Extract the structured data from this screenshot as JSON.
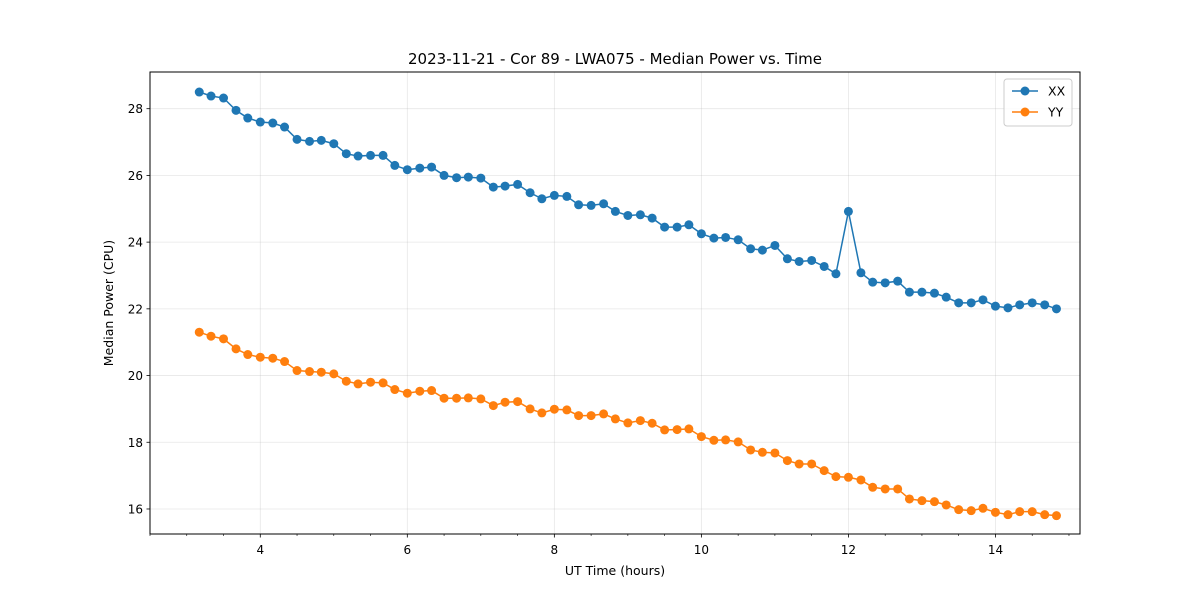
{
  "chart_data": {
    "type": "line",
    "title": "2023-11-21 - Cor 89 - LWA075 - Median Power vs. Time",
    "xlabel": "UT Time (hours)",
    "ylabel": "Median Power (CPU)",
    "xlim": [
      2.5,
      15.15
    ],
    "ylim": [
      15.25,
      29.1
    ],
    "xticks": [
      4,
      6,
      8,
      10,
      12,
      14
    ],
    "yticks": [
      16,
      18,
      20,
      22,
      24,
      26,
      28
    ],
    "grid": true,
    "legend_position": "top-right",
    "x": [
      3.17,
      3.33,
      3.5,
      3.67,
      3.83,
      4.0,
      4.17,
      4.33,
      4.5,
      4.67,
      4.83,
      5.0,
      5.17,
      5.33,
      5.5,
      5.67,
      5.83,
      6.0,
      6.17,
      6.33,
      6.5,
      6.67,
      6.83,
      7.0,
      7.17,
      7.33,
      7.5,
      7.67,
      7.83,
      8.0,
      8.17,
      8.33,
      8.5,
      8.67,
      8.83,
      9.0,
      9.17,
      9.33,
      9.5,
      9.67,
      9.83,
      10.0,
      10.17,
      10.33,
      10.5,
      10.67,
      10.83,
      11.0,
      11.17,
      11.33,
      11.5,
      11.67,
      11.83,
      12.0,
      12.17,
      12.33,
      12.5,
      12.67,
      12.83,
      13.0,
      13.17,
      13.33,
      13.5,
      13.67,
      13.83,
      14.0,
      14.17,
      14.33,
      14.5,
      14.67,
      14.83
    ],
    "series": [
      {
        "name": "XX",
        "color": "#1f77b4",
        "values": [
          28.5,
          28.38,
          28.32,
          27.95,
          27.72,
          27.6,
          27.57,
          27.45,
          27.08,
          27.02,
          27.05,
          26.95,
          26.65,
          26.58,
          26.6,
          26.6,
          26.3,
          26.17,
          26.22,
          26.25,
          26.0,
          25.93,
          25.95,
          25.92,
          25.65,
          25.68,
          25.73,
          25.48,
          25.3,
          25.4,
          25.37,
          25.12,
          25.1,
          25.15,
          24.92,
          24.8,
          24.82,
          24.72,
          24.45,
          24.45,
          24.52,
          24.25,
          24.12,
          24.14,
          24.07,
          23.8,
          23.76,
          23.9,
          23.5,
          23.42,
          23.45,
          23.27,
          23.05,
          24.92,
          23.08,
          22.8,
          22.78,
          22.83,
          22.5,
          22.5,
          22.47,
          22.35,
          22.18,
          22.18,
          22.27,
          22.08,
          22.03,
          22.12,
          22.18,
          22.12,
          22.0
        ]
      },
      {
        "name": "YY",
        "color": "#ff7f0e",
        "values": [
          21.3,
          21.18,
          21.1,
          20.8,
          20.63,
          20.55,
          20.52,
          20.42,
          20.15,
          20.12,
          20.1,
          20.05,
          19.83,
          19.75,
          19.8,
          19.78,
          19.58,
          19.47,
          19.53,
          19.55,
          19.32,
          19.32,
          19.33,
          19.3,
          19.1,
          19.2,
          19.22,
          19.0,
          18.88,
          18.99,
          18.97,
          18.8,
          18.8,
          18.85,
          18.7,
          18.58,
          18.65,
          18.57,
          18.37,
          18.38,
          18.4,
          18.17,
          18.06,
          18.07,
          18.01,
          17.77,
          17.7,
          17.68,
          17.45,
          17.35,
          17.35,
          17.15,
          16.97,
          16.95,
          16.87,
          16.65,
          16.6,
          16.6,
          16.3,
          16.25,
          16.22,
          16.12,
          15.98,
          15.95,
          16.02,
          15.9,
          15.83,
          15.92,
          15.92,
          15.83,
          15.8
        ]
      }
    ]
  }
}
